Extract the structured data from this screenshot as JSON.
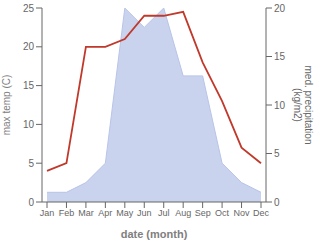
{
  "chart_data": {
    "type": "line",
    "xlabel": "date (month)",
    "ylabel": "max temp (C)",
    "y2label": "med. precipitation\n(kg/m2)",
    "categories": [
      "Jan",
      "Feb",
      "Mar",
      "Apr",
      "May",
      "Jun",
      "Jul",
      "Aug",
      "Sep",
      "Oct",
      "Nov",
      "Dec"
    ],
    "series": [
      {
        "type": "line",
        "color": "#c0392b",
        "values": [
          4,
          5,
          20,
          20,
          21,
          24,
          24,
          24.5,
          18,
          13,
          7,
          5
        ]
      },
      {
        "type": "area",
        "axis": "y2",
        "color": "#b8c4e8",
        "values": [
          1,
          1,
          2,
          4,
          20,
          18,
          20,
          13,
          13,
          4,
          2,
          1
        ]
      }
    ],
    "ylim": [
      0,
      25
    ],
    "yticks": [
      0,
      5,
      10,
      15,
      20,
      25
    ],
    "y2lim": [
      0,
      20
    ],
    "y2ticks": [
      0,
      5,
      10,
      15,
      20
    ]
  }
}
